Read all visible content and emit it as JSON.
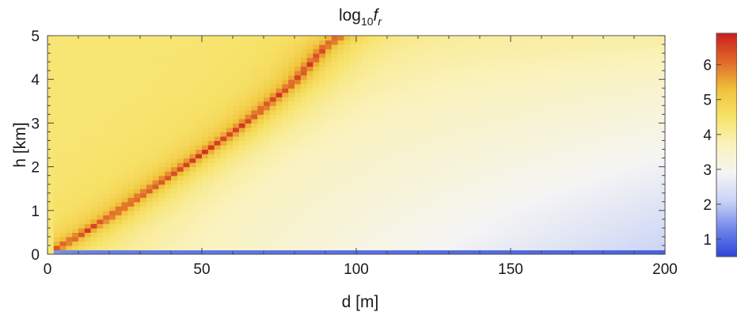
{
  "chart_data": {
    "type": "heatmap",
    "title": {
      "prefix": "log",
      "subscript": "10",
      "variable": "f",
      "variable_subscript": "r"
    },
    "xlabel": "d [m]",
    "ylabel": "h [km]",
    "xlim": [
      0,
      200
    ],
    "ylim": [
      0,
      5
    ],
    "x_ticks": [
      "0",
      "50",
      "100",
      "150",
      "200"
    ],
    "x_tick_values": [
      0,
      50,
      100,
      150,
      200
    ],
    "y_ticks": [
      "0",
      "1",
      "2",
      "3",
      "4",
      "5"
    ],
    "y_tick_values": [
      0,
      1,
      2,
      3,
      4,
      5
    ],
    "colorbar": {
      "range": [
        0.5,
        6.9
      ],
      "ticks": [
        "1",
        "2",
        "3",
        "4",
        "5",
        "6"
      ],
      "tick_values": [
        1,
        2,
        3,
        4,
        5,
        6
      ],
      "colormap": [
        "#2a44d8",
        "#6f86e8",
        "#c9d3f5",
        "#f4f4f4",
        "#faf3c0",
        "#f7e36a",
        "#f0c23a",
        "#e06a2a",
        "#cc1f1f"
      ]
    },
    "ridge": {
      "description_points_d_m": [
        0,
        20,
        50,
        60,
        70,
        80,
        90,
        95
      ],
      "description_points_h_km": [
        0.0,
        0.85,
        2.3,
        2.78,
        3.35,
        3.95,
        4.75,
        5.0
      ],
      "peak_value": 6.9
    }
  }
}
